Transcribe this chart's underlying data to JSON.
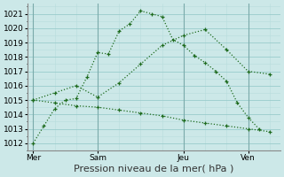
{
  "xlabel": "Pression niveau de la mer( hPa )",
  "bg_color": "#cce8e8",
  "grid_major_color": "#99cccc",
  "grid_minor_color": "#b8dddd",
  "line_color": "#1e6b1e",
  "ylim": [
    1011.5,
    1021.7
  ],
  "yticks": [
    1012,
    1013,
    1014,
    1015,
    1016,
    1017,
    1018,
    1019,
    1020,
    1021
  ],
  "xtick_labels": [
    "Mer",
    "Sam",
    "Jeu",
    "Ven"
  ],
  "xtick_positions": [
    0,
    24,
    56,
    80
  ],
  "vline_positions": [
    0,
    24,
    56,
    80
  ],
  "xlim": [
    -2,
    92
  ],
  "line1_x": [
    0,
    4,
    8,
    12,
    16,
    20,
    24,
    28,
    32,
    36,
    40,
    44,
    48,
    52,
    56,
    60,
    64,
    68,
    72,
    76,
    80,
    84
  ],
  "line1_y": [
    1012.0,
    1013.2,
    1014.4,
    1015.0,
    1015.1,
    1016.6,
    1018.3,
    1018.2,
    1019.8,
    1020.3,
    1021.2,
    1021.0,
    1020.8,
    1019.2,
    1018.8,
    1018.1,
    1017.6,
    1017.0,
    1016.3,
    1014.8,
    1013.8,
    1013.0
  ],
  "line2_x": [
    0,
    8,
    16,
    24,
    32,
    40,
    48,
    56,
    64,
    72,
    80,
    88
  ],
  "line2_y": [
    1015.0,
    1015.5,
    1016.0,
    1015.2,
    1016.2,
    1017.5,
    1018.8,
    1019.5,
    1019.9,
    1018.5,
    1017.0,
    1016.8
  ],
  "line3_x": [
    0,
    8,
    16,
    24,
    32,
    40,
    48,
    56,
    64,
    72,
    80,
    88
  ],
  "line3_y": [
    1015.0,
    1014.8,
    1014.6,
    1014.5,
    1014.3,
    1014.1,
    1013.9,
    1013.6,
    1013.4,
    1013.2,
    1013.0,
    1012.8
  ],
  "xlabel_fontsize": 8,
  "tick_fontsize": 6.5,
  "vline_color": "#7aaaaa"
}
